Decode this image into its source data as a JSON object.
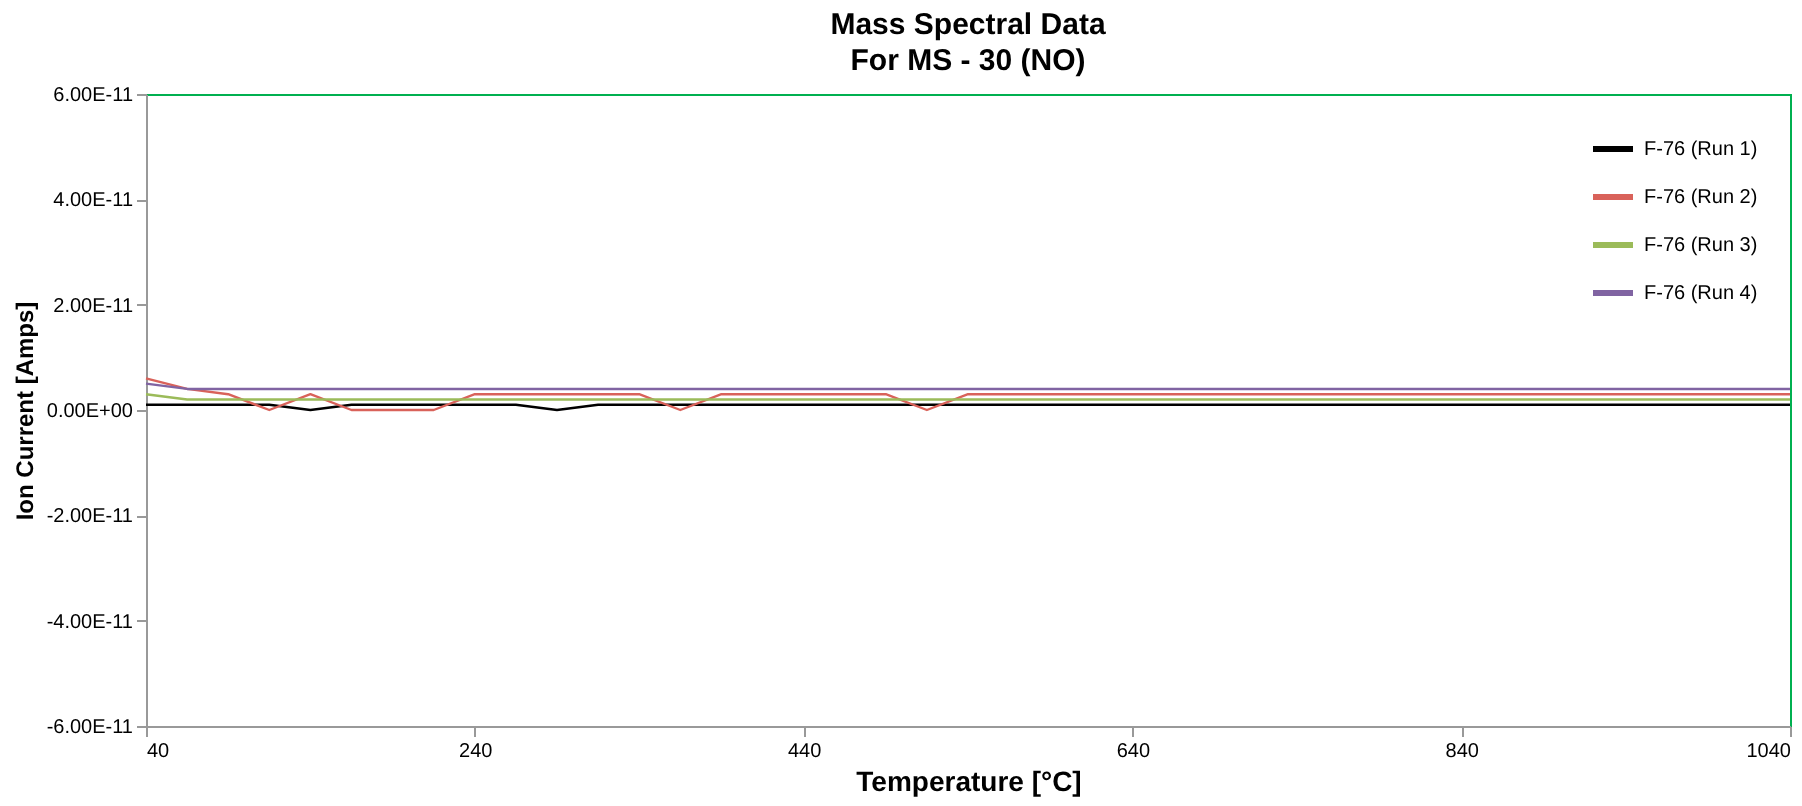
{
  "chart_data": {
    "type": "line",
    "title": "Mass Spectral Data",
    "subtitle": "For MS - 30 (NO)",
    "xlabel": "Temperature [°C]",
    "ylabel": "Ion Current [Amps]",
    "x": [
      40,
      65,
      90,
      115,
      140,
      165,
      190,
      215,
      240,
      265,
      290,
      315,
      340,
      365,
      390,
      415,
      440,
      465,
      490,
      515,
      540,
      565,
      590,
      615,
      640,
      665,
      690,
      715,
      740,
      765,
      790,
      815,
      840,
      865,
      890,
      915,
      940,
      965,
      990,
      1015,
      1040
    ],
    "series": [
      {
        "name": "F-76 (Run 1)",
        "color": "#000000",
        "values": [
          1e-12,
          1e-12,
          1e-12,
          1e-12,
          0,
          1e-12,
          1e-12,
          1e-12,
          1e-12,
          1e-12,
          0,
          1e-12,
          1e-12,
          1e-12,
          1e-12,
          1e-12,
          1e-12,
          1e-12,
          1e-12,
          1e-12,
          1e-12,
          1e-12,
          1e-12,
          1e-12,
          1e-12,
          1e-12,
          1e-12,
          1e-12,
          1e-12,
          1e-12,
          1e-12,
          1e-12,
          1e-12,
          1e-12,
          1e-12,
          1e-12,
          1e-12,
          1e-12,
          1e-12,
          1e-12,
          1e-12
        ]
      },
      {
        "name": "F-76 (Run 2)",
        "color": "#d9625a",
        "values": [
          6e-12,
          4e-12,
          3e-12,
          0,
          3e-12,
          0,
          0,
          0,
          3e-12,
          3e-12,
          3e-12,
          3e-12,
          3e-12,
          0,
          3e-12,
          3e-12,
          3e-12,
          3e-12,
          3e-12,
          0,
          3e-12,
          3e-12,
          3e-12,
          3e-12,
          3e-12,
          3e-12,
          3e-12,
          3e-12,
          3e-12,
          3e-12,
          3e-12,
          3e-12,
          3e-12,
          3e-12,
          3e-12,
          3e-12,
          3e-12,
          3e-12,
          3e-12,
          3e-12,
          3e-12
        ]
      },
      {
        "name": "F-76 (Run 3)",
        "color": "#9bbb59",
        "values": [
          3e-12,
          2e-12,
          2e-12,
          2e-12,
          2e-12,
          2e-12,
          2e-12,
          2e-12,
          2e-12,
          2e-12,
          2e-12,
          2e-12,
          2e-12,
          2e-12,
          2e-12,
          2e-12,
          2e-12,
          2e-12,
          2e-12,
          2e-12,
          2e-12,
          2e-12,
          2e-12,
          2e-12,
          2e-12,
          2e-12,
          2e-12,
          2e-12,
          2e-12,
          2e-12,
          2e-12,
          2e-12,
          2e-12,
          2e-12,
          2e-12,
          2e-12,
          2e-12,
          2e-12,
          2e-12,
          2e-12,
          2e-12
        ]
      },
      {
        "name": "F-76 (Run 4)",
        "color": "#8064a2",
        "values": [
          5e-12,
          4e-12,
          4e-12,
          4e-12,
          4e-12,
          4e-12,
          4e-12,
          4e-12,
          4e-12,
          4e-12,
          4e-12,
          4e-12,
          4e-12,
          4e-12,
          4e-12,
          4e-12,
          4e-12,
          4e-12,
          4e-12,
          4e-12,
          4e-12,
          4e-12,
          4e-12,
          4e-12,
          4e-12,
          4e-12,
          4e-12,
          4e-12,
          4e-12,
          4e-12,
          4e-12,
          4e-12,
          4e-12,
          4e-12,
          4e-12,
          4e-12,
          4e-12,
          4e-12,
          4e-12,
          4e-12,
          4e-12
        ]
      }
    ],
    "xlim": [
      40,
      1040
    ],
    "xticks": [
      40,
      240,
      440,
      640,
      840,
      1040
    ],
    "ylim": [
      -6e-11,
      6e-11
    ],
    "yticks": [
      {
        "value": -6e-11,
        "label": "-6.00E-11"
      },
      {
        "value": -4e-11,
        "label": "-4.00E-11"
      },
      {
        "value": -2e-11,
        "label": "-2.00E-11"
      },
      {
        "value": 0,
        "label": "0.00E+00"
      },
      {
        "value": 2e-11,
        "label": "2.00E-11"
      },
      {
        "value": 4e-11,
        "label": "4.00E-11"
      },
      {
        "value": 6e-11,
        "label": "6.00E-11"
      }
    ],
    "legend": "top right",
    "grid": false,
    "marker": "none",
    "line_style": "solid"
  }
}
